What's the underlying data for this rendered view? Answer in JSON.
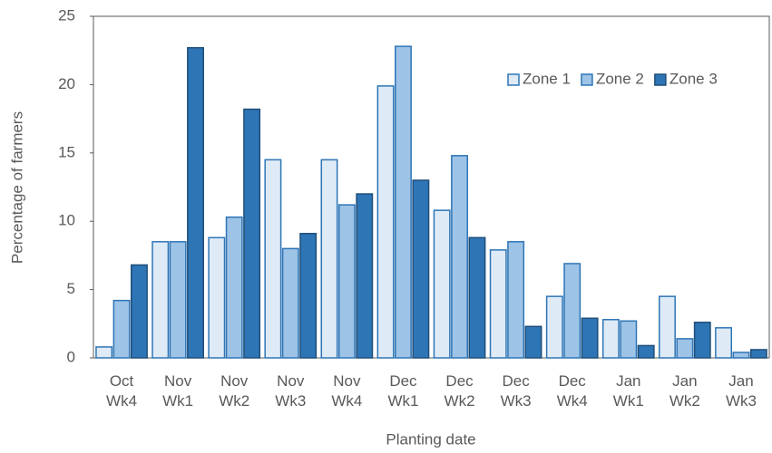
{
  "chart_data": {
    "type": "bar",
    "x_label": "Planting date",
    "y_label": "Percentage of farmers",
    "categories": [
      [
        "Oct",
        "Wk4"
      ],
      [
        "Nov",
        "Wk1"
      ],
      [
        "Nov",
        "Wk2"
      ],
      [
        "Nov",
        "Wk3"
      ],
      [
        "Nov",
        "Wk4"
      ],
      [
        "Dec",
        "Wk1"
      ],
      [
        "Dec",
        "Wk2"
      ],
      [
        "Dec",
        "Wk3"
      ],
      [
        "Dec",
        "Wk4"
      ],
      [
        "Jan",
        "Wk1"
      ],
      [
        "Jan",
        "Wk2"
      ],
      [
        "Jan",
        "Wk3"
      ]
    ],
    "series": [
      {
        "name": "Zone 1",
        "color": "#deebf7",
        "values": [
          0.8,
          8.5,
          8.8,
          14.5,
          14.5,
          19.9,
          10.8,
          7.9,
          4.5,
          2.8,
          4.5,
          2.2
        ]
      },
      {
        "name": "Zone 2",
        "color": "#9dc3e6",
        "values": [
          4.2,
          8.5,
          10.3,
          8.0,
          11.2,
          22.8,
          14.8,
          8.5,
          6.9,
          2.7,
          1.4,
          0.4
        ]
      },
      {
        "name": "Zone 3",
        "color": "#2e75b6",
        "values": [
          6.8,
          22.7,
          18.2,
          9.1,
          12.0,
          13.0,
          8.8,
          2.3,
          2.9,
          0.9,
          2.6,
          0.6
        ]
      }
    ],
    "ylim": [
      0,
      25
    ],
    "yticks": [
      0,
      5,
      10,
      15,
      20,
      25
    ],
    "grid": false,
    "legend": "upper right"
  }
}
